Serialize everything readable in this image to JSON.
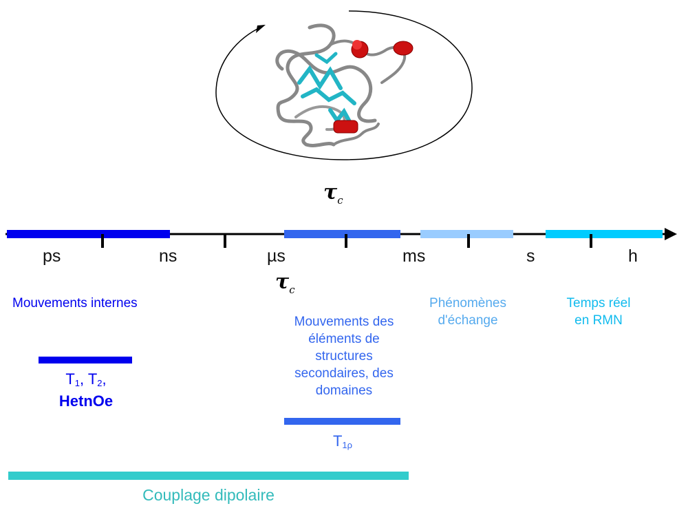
{
  "colors": {
    "dark_blue": "#0000ee",
    "mid_blue": "#3366ee",
    "light_blue": "#99ccff",
    "cyan": "#00ccff",
    "teal": "#33cccc",
    "axis": "#000000"
  },
  "tau_symbol": "τ",
  "tau_subscript": "c",
  "scale_units": [
    "ps",
    "ns",
    "µs",
    "ms",
    "s",
    "h"
  ],
  "categories": {
    "internal": "Mouvements internes",
    "secondary": [
      "Mouvements des",
      "éléments de",
      "structures",
      "secondaires, des",
      "domaines"
    ],
    "exchange": [
      "Phénomènes",
      "d'échange"
    ],
    "realtime": [
      "Temps réel",
      "en RMN"
    ]
  },
  "parameters": {
    "t_main": "T",
    "t1_sub": "1",
    "t2_sub": "2",
    "sep": ", ",
    "comma": ",",
    "hetnoe": "HetnOe",
    "t1rho_sub": "1ρ"
  },
  "dipolar_coupling": "Couplage dipolaire",
  "icons": [
    "protein-structure-icon",
    "rotation-arrow-icon"
  ]
}
